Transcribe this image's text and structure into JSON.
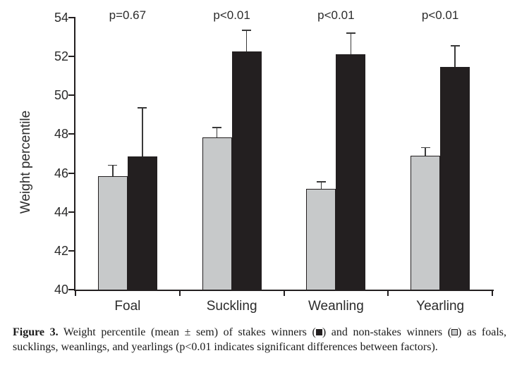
{
  "chart_data": {
    "type": "bar",
    "title": "",
    "xlabel": "",
    "ylabel": "Weight percentile",
    "ylim": [
      40,
      54
    ],
    "yticks": [
      40,
      42,
      44,
      46,
      48,
      50,
      52,
      54
    ],
    "grid": false,
    "legend_position": "in-caption",
    "categories": [
      "Foal",
      "Suckling",
      "Weanling",
      "Yearling"
    ],
    "series": [
      {
        "name": "non-stakes winners",
        "marker": "open-gray-square",
        "color": "#c7c9ca",
        "values": [
          45.85,
          47.85,
          45.2,
          46.9
        ],
        "sem": [
          0.55,
          0.5,
          0.35,
          0.4
        ]
      },
      {
        "name": "stakes winners",
        "marker": "filled-black-square",
        "color": "#231f20",
        "values": [
          46.85,
          52.25,
          52.1,
          51.45
        ],
        "sem": [
          2.5,
          1.1,
          1.1,
          1.1
        ]
      }
    ],
    "p_labels": [
      "p=0.67",
      "p<0.01",
      "p<0.01",
      "p<0.01"
    ]
  },
  "caption": {
    "label": "Figure 3.",
    "part1": " Weight percentile (mean ± sem) of stakes winners (",
    "part2": ") and non-stakes winners (",
    "part3": ") as foals, sucklings, weanlings, and yearlings (p<0.01 indicates significant differences between factors)."
  },
  "colors": {
    "stakes_bar": "#231f20",
    "non_stakes_bar": "#c7c9ca",
    "axis": "#231f20",
    "error_bar": "#3a3a3a",
    "text": "#2b2b2b",
    "background": "#ffffff"
  }
}
